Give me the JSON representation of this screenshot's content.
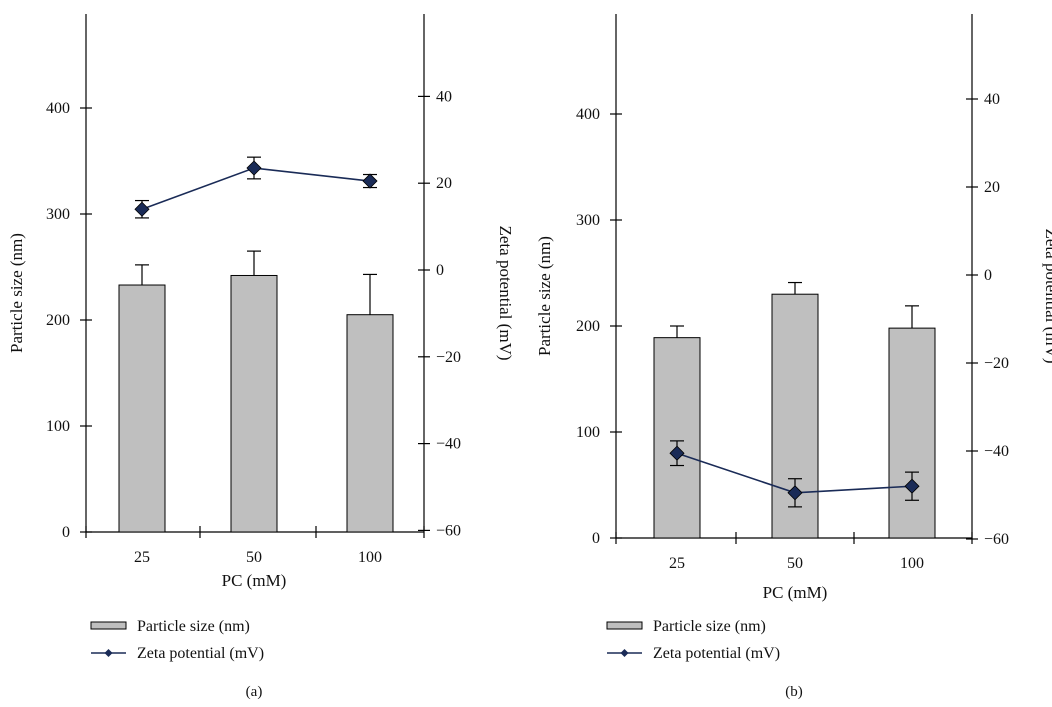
{
  "chart_data": [
    {
      "type": "bar",
      "panel_label": "(a)",
      "categories": [
        "25",
        "50",
        "100"
      ],
      "xlabel": "PC (mM)",
      "y_left": {
        "label": "Particle size (nm)",
        "range": [
          0,
          500
        ],
        "ticks": [
          0,
          100,
          200,
          300,
          400
        ]
      },
      "y_right": {
        "label": "Zeta potential (mV)",
        "range": [
          -60,
          60
        ],
        "ticks": [
          -60,
          -40,
          -20,
          0,
          20,
          40
        ]
      },
      "series": [
        {
          "name": "Particle size (nm)",
          "kind": "bar",
          "axis": "left",
          "values": [
            233,
            242,
            205
          ],
          "errors": [
            19,
            23,
            38
          ]
        },
        {
          "name": "Zeta potential (mV)",
          "kind": "line",
          "axis": "right",
          "values": [
            14,
            23.5,
            20.5
          ],
          "errors": [
            2,
            2.5,
            1.5
          ]
        }
      ],
      "legend": [
        "Particle size (nm)",
        "Zeta potential (mV)"
      ],
      "legend_position": "bottom"
    },
    {
      "type": "bar",
      "panel_label": "(b)",
      "categories": [
        "25",
        "50",
        "100"
      ],
      "xlabel": "PC (mM)",
      "y_left": {
        "label": "Particle size (nm)",
        "range": [
          0,
          500
        ],
        "ticks": [
          0,
          100,
          200,
          300,
          400
        ]
      },
      "y_right": {
        "label": "Zeta potential (mV)",
        "range": [
          -60,
          60
        ],
        "ticks": [
          -60,
          -40,
          -20,
          0,
          20,
          40
        ]
      },
      "series": [
        {
          "name": "Particle size (nm)",
          "kind": "bar",
          "axis": "left",
          "values": [
            189,
            230,
            198
          ],
          "errors": [
            11,
            11,
            21
          ]
        },
        {
          "name": "Zeta potential (mV)",
          "kind": "line",
          "axis": "right",
          "values": [
            -40.5,
            -49.5,
            -48
          ],
          "errors": [
            2.8,
            3.2,
            3.2
          ]
        }
      ],
      "legend": [
        "Particle size (nm)",
        "Zeta potential (mV)"
      ],
      "legend_position": "bottom"
    }
  ],
  "colors": {
    "bar_fill": "#bfbfbf",
    "line": "#1a2b57",
    "marker": "#1a2b57",
    "axis": "#000000"
  }
}
